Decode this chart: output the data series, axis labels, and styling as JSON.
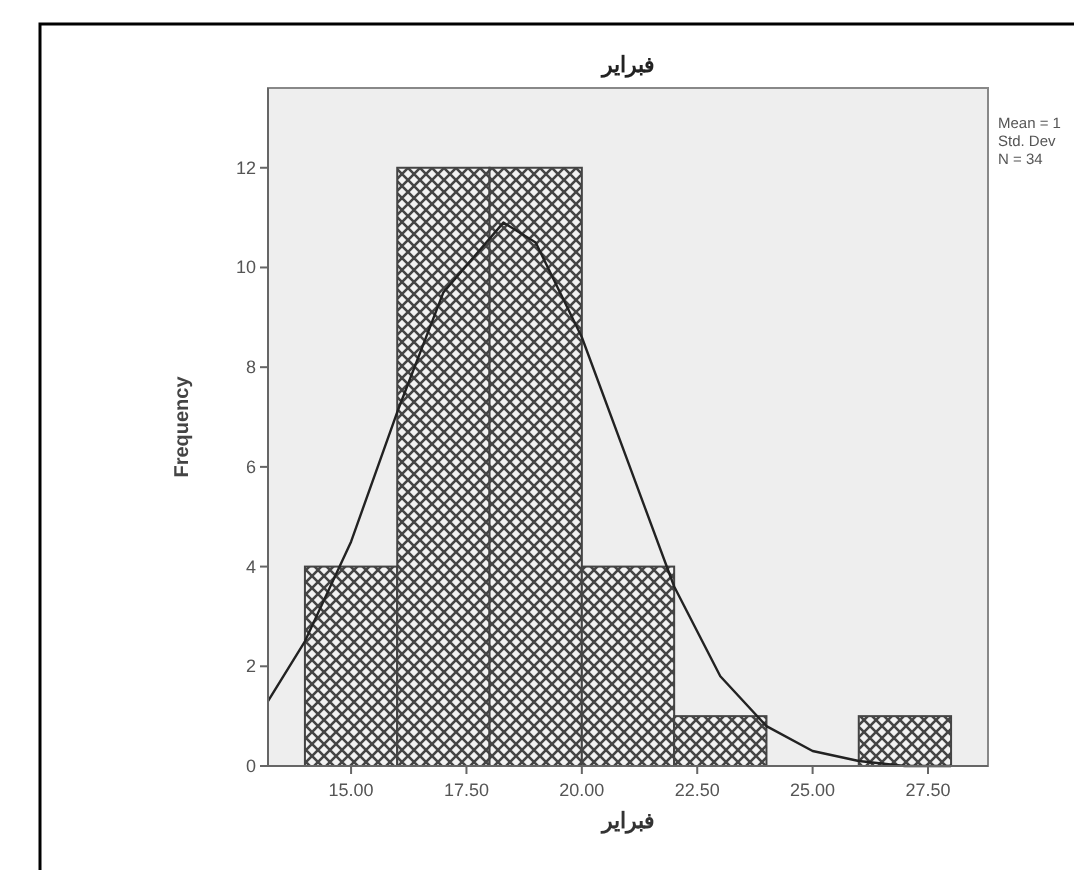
{
  "chart_data": {
    "type": "histogram",
    "title": "فبراير",
    "xlabel": "فبراير",
    "ylabel": "Frequency",
    "bins": [
      14,
      16,
      18,
      20,
      22,
      24,
      26,
      28
    ],
    "values": [
      4,
      12,
      12,
      4,
      1,
      0,
      1
    ],
    "color": "#444444",
    "series": [
      {
        "type": "line",
        "color": "#222222",
        "x": [
          13.2,
          14,
          15,
          16,
          17,
          18.3,
          19,
          20,
          21,
          22,
          23,
          24,
          25,
          26,
          27,
          28
        ],
        "values": [
          1.3,
          2.5,
          4.5,
          7.1,
          9.5,
          10.9,
          10.5,
          8.6,
          6.1,
          3.6,
          1.8,
          0.8,
          0.3,
          0.1,
          0.0,
          0.0
        ]
      }
    ],
    "xlim": [
      13.2,
      28.8
    ],
    "ylim": [
      0,
      13.6
    ],
    "xticks": [
      {
        "value": 15,
        "label": "15.00"
      },
      {
        "value": 17.5,
        "label": "17.50"
      },
      {
        "value": 20,
        "label": "20.00"
      },
      {
        "value": 22.5,
        "label": "22.50"
      },
      {
        "value": 25,
        "label": "25.00"
      },
      {
        "value": 27.5,
        "label": "27.50"
      }
    ],
    "yticks": [
      0,
      2,
      4,
      6,
      8,
      10,
      12
    ],
    "annotations": [
      "Mean = 1",
      "Std. Dev",
      "N = 34"
    ]
  }
}
